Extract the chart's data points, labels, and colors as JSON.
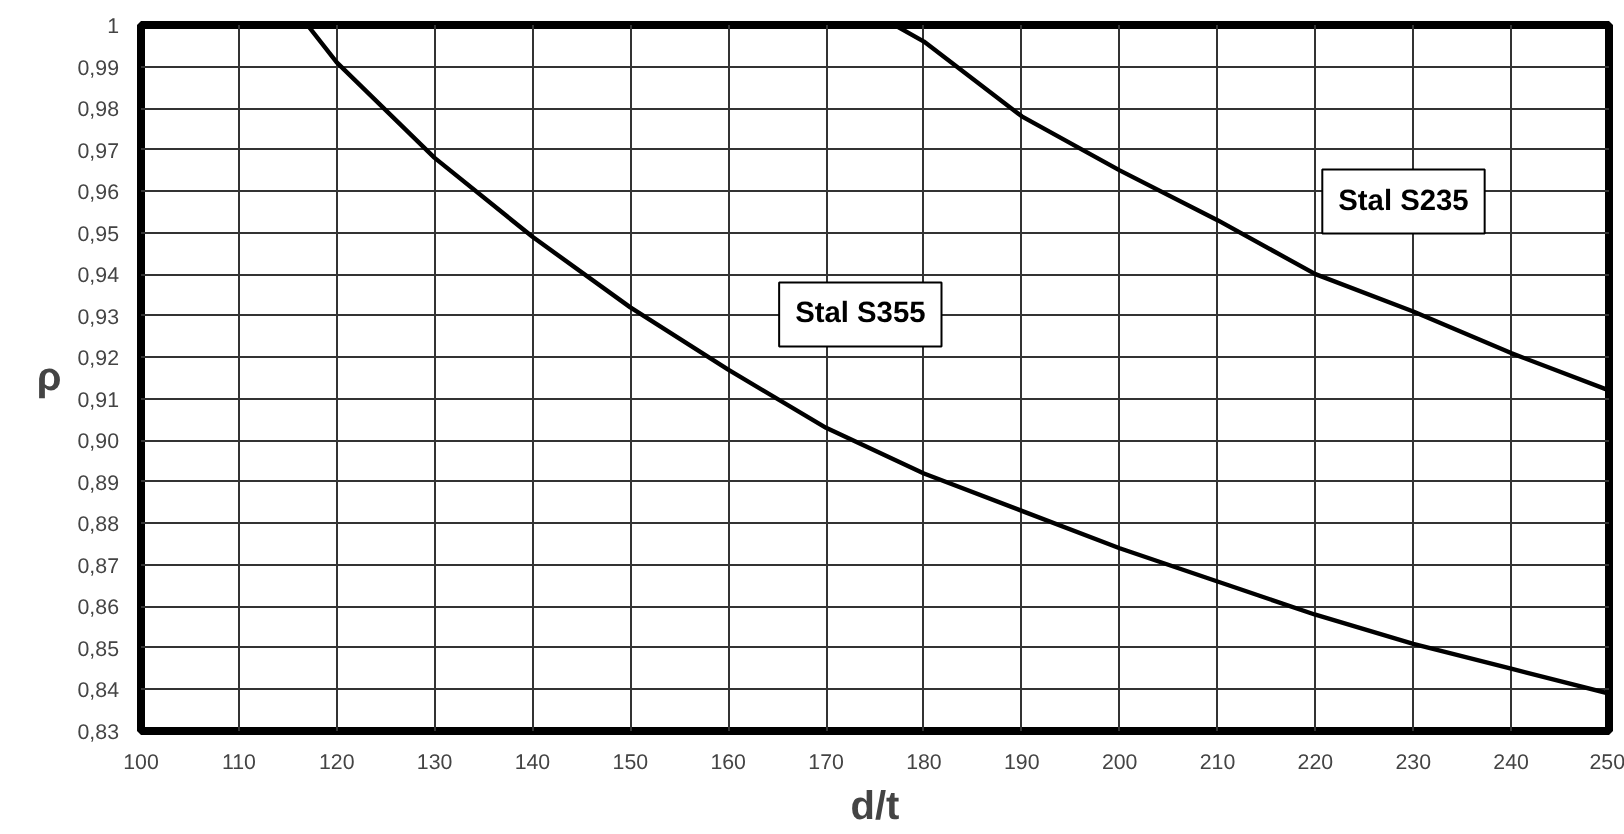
{
  "chart_data": {
    "type": "line",
    "xlabel": "d/t",
    "ylabel": "ρ",
    "xlim": [
      100,
      250
    ],
    "xticks": [
      100,
      110,
      120,
      130,
      140,
      150,
      160,
      170,
      180,
      190,
      200,
      210,
      220,
      230,
      240,
      250
    ],
    "ylim": [
      0.83,
      1
    ],
    "yticks": [
      {
        "value": 0.83,
        "label": "0,83"
      },
      {
        "value": 0.84,
        "label": "0,84"
      },
      {
        "value": 0.85,
        "label": "0,85"
      },
      {
        "value": 0.86,
        "label": "0,86"
      },
      {
        "value": 0.87,
        "label": "0,87"
      },
      {
        "value": 0.88,
        "label": "0,88"
      },
      {
        "value": 0.89,
        "label": "0,89"
      },
      {
        "value": 0.9,
        "label": "0,90"
      },
      {
        "value": 0.91,
        "label": "0,91"
      },
      {
        "value": 0.92,
        "label": "0,92"
      },
      {
        "value": 0.93,
        "label": "0,93"
      },
      {
        "value": 0.94,
        "label": "0,94"
      },
      {
        "value": 0.95,
        "label": "0,95"
      },
      {
        "value": 0.96,
        "label": "0,96"
      },
      {
        "value": 0.97,
        "label": "0,97"
      },
      {
        "value": 0.98,
        "label": "0,98"
      },
      {
        "value": 0.99,
        "label": "0,99"
      },
      1
    ],
    "grid": true,
    "marker": "none",
    "line_style": "solid",
    "series": [
      {
        "name": "Stal S355",
        "color": "#000000",
        "x": [
          117,
          120,
          130,
          140,
          150,
          160,
          170,
          180,
          190,
          200,
          210,
          220,
          230,
          240,
          250
        ],
        "values": [
          1,
          0.991,
          0.968,
          0.949,
          0.932,
          0.917,
          0.903,
          0.892,
          0.883,
          0.874,
          0.866,
          0.858,
          0.851,
          0.845,
          0.839
        ]
      },
      {
        "name": "Stal S235",
        "color": "#000000",
        "x": [
          177,
          180,
          190,
          200,
          210,
          220,
          230,
          240,
          250
        ],
        "values": [
          1,
          0.996,
          0.978,
          0.965,
          0.953,
          0.94,
          0.931,
          0.921,
          0.912
        ]
      }
    ]
  }
}
